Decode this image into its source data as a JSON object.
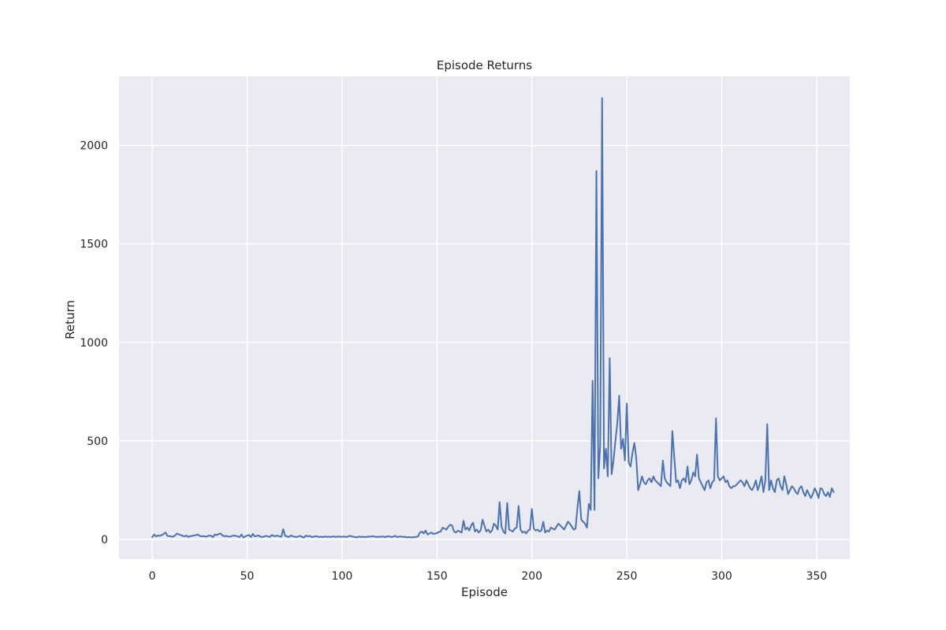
{
  "chart_data": {
    "type": "line",
    "title": "Episode Returns",
    "xlabel": "Episode",
    "ylabel": "Return",
    "xlim": [
      -17.5,
      367.5
    ],
    "ylim": [
      -100,
      2350
    ],
    "x_ticks": [
      0,
      50,
      100,
      150,
      200,
      250,
      300,
      350
    ],
    "y_ticks": [
      0,
      500,
      1000,
      1500,
      2000
    ],
    "grid": true,
    "background_color": "#eaeaf2",
    "grid_color": "#ffffff",
    "line_color": "#4c72b0",
    "series": [
      {
        "x_start": 0,
        "values": [
          12,
          25,
          15,
          20,
          18,
          22,
          28,
          35,
          18,
          17,
          15,
          14,
          20,
          30,
          25,
          22,
          18,
          15,
          20,
          12,
          16,
          18,
          20,
          22,
          25,
          18,
          15,
          17,
          14,
          16,
          20,
          18,
          12,
          25,
          22,
          28,
          30,
          20,
          16,
          18,
          15,
          14,
          17,
          20,
          18,
          15,
          12,
          25,
          10,
          15,
          20,
          22,
          12,
          28,
          15,
          18,
          20,
          14,
          12,
          15,
          18,
          15,
          13,
          22,
          18,
          16,
          20,
          15,
          14,
          52,
          18,
          15,
          12,
          20,
          16,
          14,
          12,
          15,
          18,
          12,
          10,
          20,
          15,
          18,
          12,
          14,
          16,
          15,
          12,
          14,
          12,
          15,
          13,
          14,
          12,
          15,
          14,
          13,
          15,
          14,
          13,
          15,
          12,
          14,
          18,
          15,
          14,
          12,
          10,
          15,
          12,
          14,
          12,
          13,
          15,
          14,
          16,
          15,
          12,
          14,
          13,
          15,
          14,
          12,
          16,
          15,
          12,
          14,
          18,
          12,
          14,
          15,
          12,
          14,
          10,
          12,
          11,
          10,
          12,
          13,
          15,
          35,
          40,
          30,
          45,
          25,
          30,
          35,
          28,
          30,
          32,
          38,
          40,
          60,
          55,
          50,
          65,
          75,
          70,
          40,
          35,
          45,
          40,
          35,
          95,
          50,
          60,
          45,
          70,
          85,
          40,
          50,
          35,
          45,
          100,
          70,
          40,
          50,
          35,
          45,
          80,
          70,
          50,
          190,
          65,
          40,
          30,
          185,
          50,
          45,
          40,
          55,
          60,
          170,
          50,
          35,
          40,
          30,
          45,
          50,
          155,
          55,
          45,
          50,
          40,
          45,
          90,
          35,
          45,
          40,
          60,
          55,
          50,
          65,
          80,
          70,
          60,
          50,
          70,
          90,
          80,
          65,
          50,
          55,
          160,
          245,
          100,
          90,
          80,
          60,
          180,
          150,
          805,
          150,
          1870,
          310,
          480,
          2240,
          360,
          460,
          320,
          920,
          330,
          400,
          500,
          590,
          730,
          460,
          510,
          400,
          690,
          390,
          370,
          440,
          490,
          410,
          250,
          280,
          320,
          290,
          280,
          300,
          310,
          290,
          320,
          300,
          290,
          280,
          270,
          400,
          310,
          290,
          280,
          270,
          550,
          420,
          290,
          300,
          260,
          300,
          310,
          290,
          370,
          280,
          300,
          340,
          320,
          430,
          310,
          290,
          270,
          250,
          290,
          300,
          260,
          290,
          300,
          615,
          320,
          300,
          310,
          320,
          290,
          300,
          270,
          260,
          270,
          270,
          280,
          290,
          300,
          290,
          270,
          300,
          280,
          260,
          250,
          270,
          300,
          250,
          280,
          320,
          240,
          300,
          585,
          250,
          300,
          260,
          240,
          300,
          310,
          270,
          250,
          320,
          280,
          230,
          250,
          270,
          260,
          240,
          230,
          260,
          270,
          240,
          220,
          250,
          230,
          210,
          230,
          260,
          240,
          210,
          260,
          255,
          230,
          220,
          240,
          215,
          260,
          240
        ]
      }
    ]
  }
}
